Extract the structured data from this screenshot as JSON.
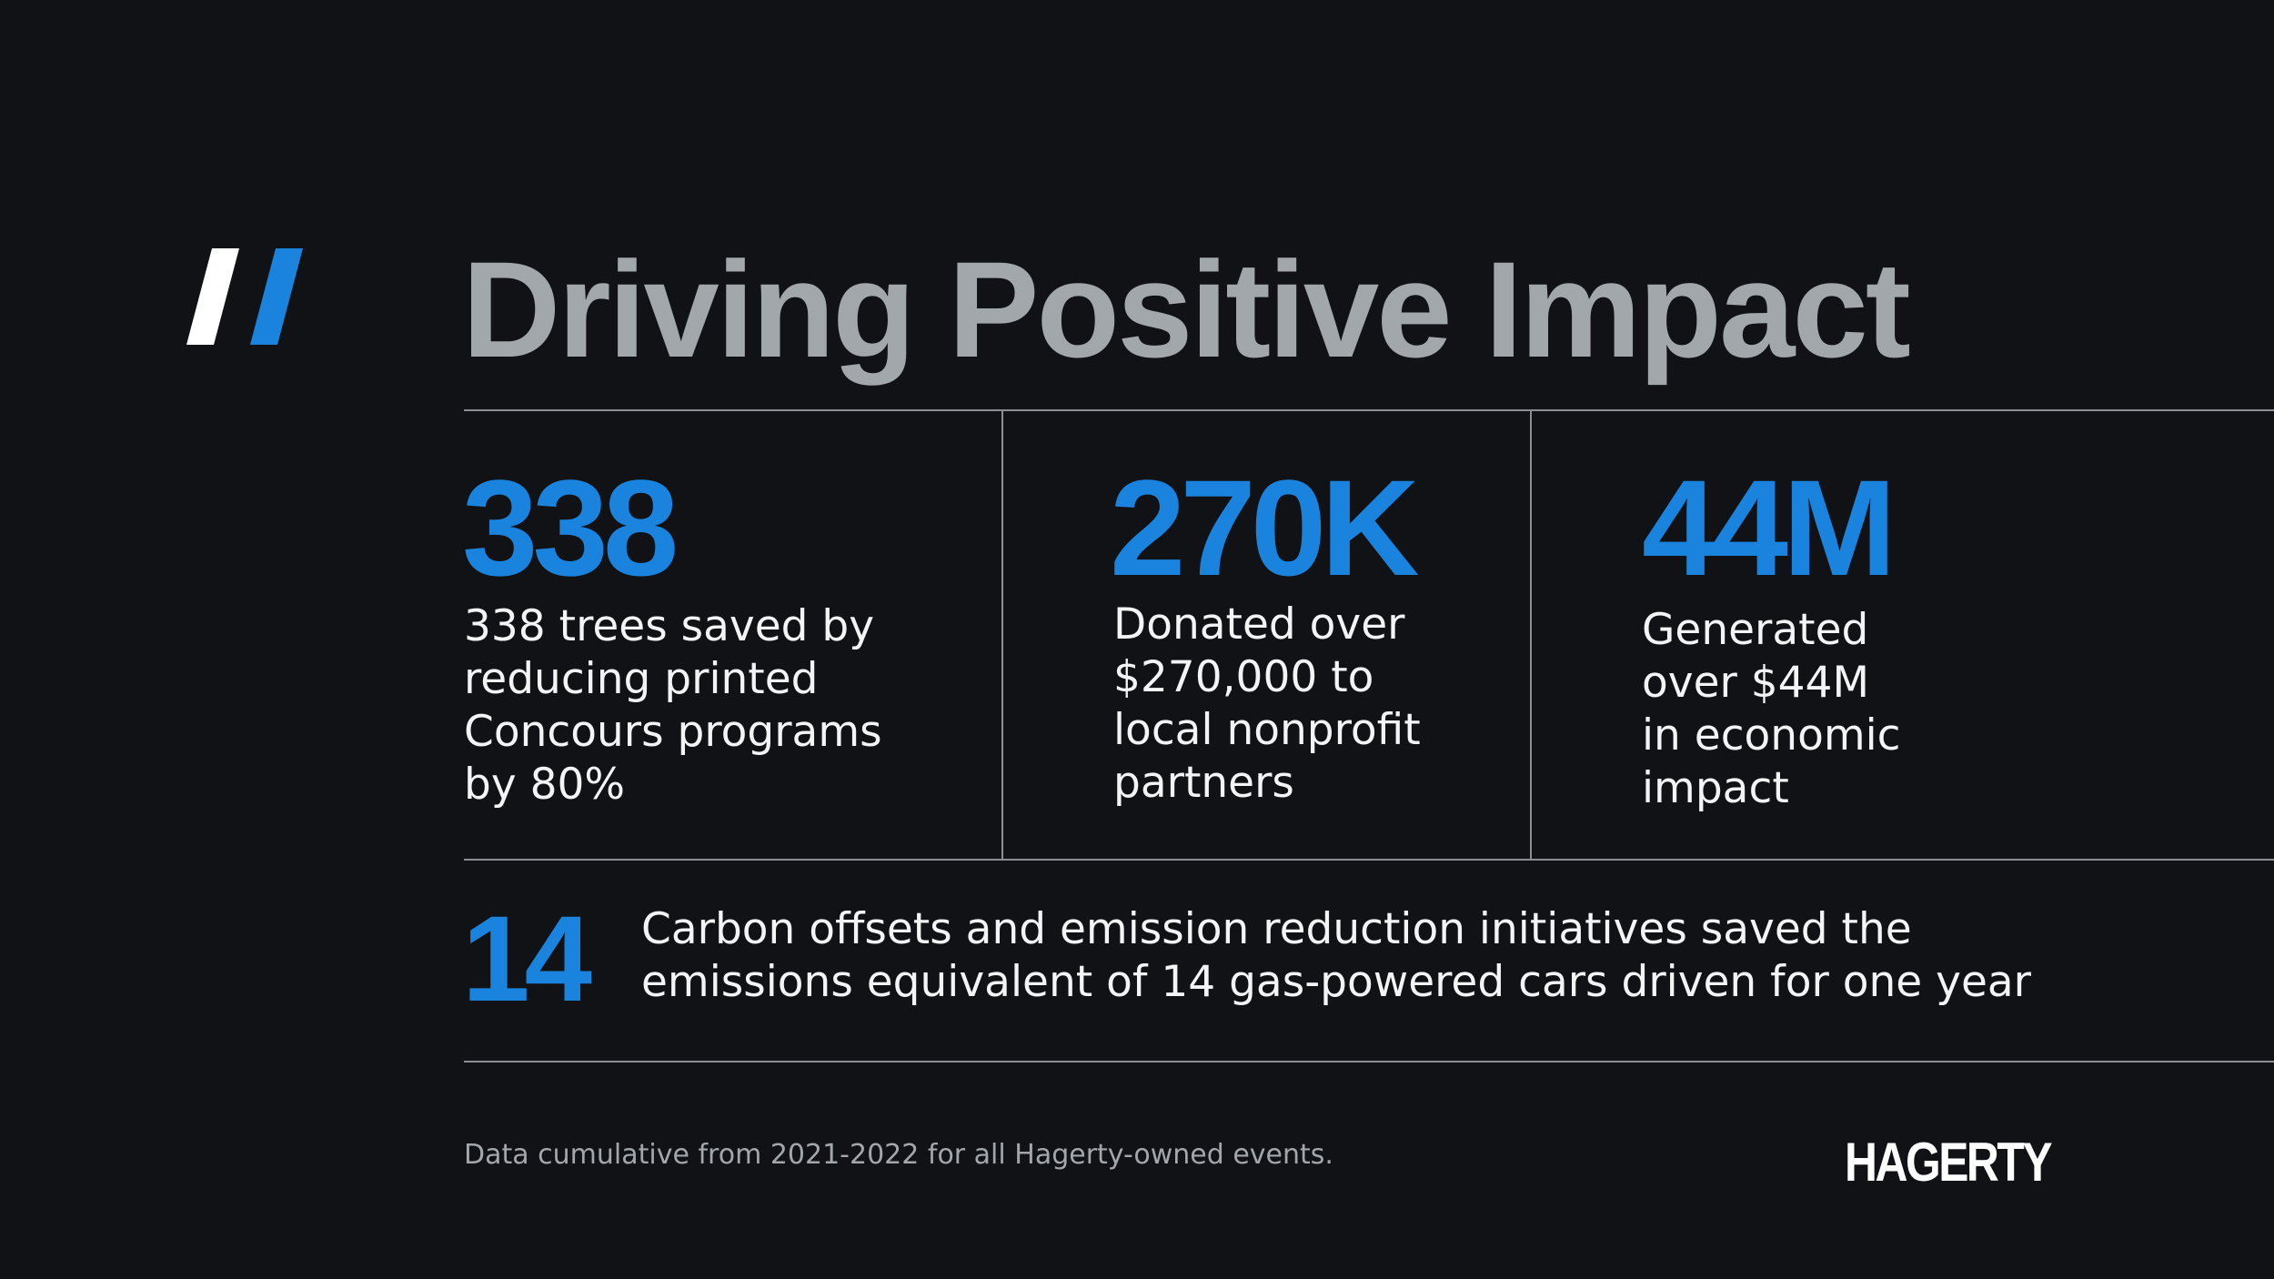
{
  "header": {
    "title": "Driving Positive Impact"
  },
  "stats": [
    {
      "number": "338",
      "description": "338 trees saved by\nreducing printed\nConcours programs\nby 80%"
    },
    {
      "number": "270K",
      "description": "Donated over\n$270,000 to\nlocal nonprofit\npartners"
    },
    {
      "number": "44M",
      "description": "Generated\nover $44M\nin economic\nimpact"
    }
  ],
  "wide_stat": {
    "number": "14",
    "description": "Carbon offsets and emission reduction initiatives saved the\nemissions equivalent of 14 gas-powered cars driven for one year"
  },
  "footer": {
    "note": "Data cumulative from 2021-2022 for all Hagerty-owned events.",
    "brand": "HAGERTY"
  },
  "colors": {
    "background": "#111215",
    "accent_blue": "#1a83dd",
    "title_gray": "#a2a7ab",
    "text_white": "#f3f4f5",
    "rule_gray": "#8b8e92"
  },
  "icons": {
    "logo_mark": "double-slash-mark"
  }
}
